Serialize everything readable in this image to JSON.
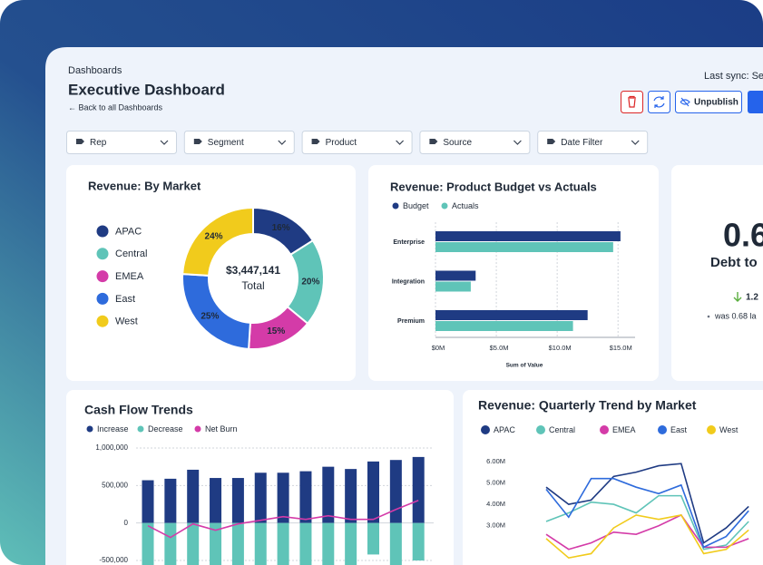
{
  "header": {
    "breadcrumb": "Dashboards",
    "title": "Executive Dashboard",
    "back_link": "← Back to all Dashboards",
    "last_sync": "Last sync: Se",
    "unpublish": "Unpublish"
  },
  "filters": [
    "Rep",
    "Segment",
    "Product",
    "Source",
    "Date Filter"
  ],
  "kpi": {
    "value": "0.6",
    "label": "Debt to",
    "change": "1.2",
    "comparison": "was 0.68 la"
  },
  "chart_data": [
    {
      "type": "pie",
      "title": "Revenue: By Market",
      "categories": [
        "APAC",
        "Central",
        "EMEA",
        "East",
        "West"
      ],
      "values": [
        16,
        20,
        15,
        25,
        24
      ],
      "value_labels": [
        "16%",
        "20%",
        "15%",
        "25%",
        "24%"
      ],
      "colors": [
        "#1f3b83",
        "#5fc4b8",
        "#d43ba8",
        "#2e6bdc",
        "#f1cb1c"
      ],
      "center_value": "$3,447,141",
      "center_label": "Total"
    },
    {
      "type": "bar",
      "orientation": "horizontal",
      "title": "Revenue: Product Budget vs Actuals",
      "categories": [
        "Enterprise",
        "Integration",
        "Premium"
      ],
      "series": [
        {
          "name": "Budget",
          "color": "#1f3b83",
          "values": [
            15.2,
            3.3,
            12.5
          ]
        },
        {
          "name": "Actuals",
          "color": "#5fc4b8",
          "values": [
            14.6,
            2.9,
            11.3
          ]
        }
      ],
      "xlim": [
        0,
        16.4
      ],
      "xticks": [
        {
          "value": 0,
          "label": "$0M"
        },
        {
          "value": 5,
          "label": "$5.0M"
        },
        {
          "value": 10,
          "label": "$10.0M"
        },
        {
          "value": 15,
          "label": "$15.0M"
        }
      ],
      "xlabel": "Sum of Value",
      "grid": true
    },
    {
      "type": "bar",
      "title": "Cash Flow Trends",
      "series": [
        {
          "name": "Increase",
          "color": "#1f3b83",
          "values": [
            570000,
            590000,
            710000,
            600000,
            600000,
            670000,
            670000,
            690000,
            750000,
            720000,
            820000,
            840000,
            880000
          ]
        },
        {
          "name": "Decrease",
          "color": "#5fc4b8",
          "values": [
            -600000,
            -600000,
            -600000,
            -600000,
            -600000,
            -600000,
            -600000,
            -600000,
            -600000,
            -600000,
            -420000,
            -600000,
            -500000
          ]
        },
        {
          "name": "Net Burn",
          "color": "#d43ba8",
          "type": "line",
          "values": [
            -36000,
            -193000,
            -12000,
            -96000,
            -12000,
            36000,
            84000,
            48000,
            96000,
            48000,
            48000,
            181000,
            301000
          ]
        }
      ],
      "ylim": [
        -600000,
        1100000
      ],
      "yticks": [
        {
          "value": 1000000,
          "label": "1,000,000"
        },
        {
          "value": 500000,
          "label": "500,000"
        },
        0,
        {
          "value": -500000,
          "label": "-500,000"
        }
      ],
      "grid": true
    },
    {
      "type": "line",
      "title": "Revenue: Quarterly Trend by Market",
      "series": [
        {
          "name": "APAC",
          "color": "#1f3b83",
          "values": [
            4.8,
            4.0,
            4.2,
            5.3,
            5.5,
            5.8,
            5.9,
            2.2,
            2.9,
            3.9
          ]
        },
        {
          "name": "Central",
          "color": "#5fc4b8",
          "values": [
            3.2,
            3.6,
            4.1,
            4.0,
            3.6,
            4.4,
            4.4,
            1.9,
            2.1,
            3.2
          ]
        },
        {
          "name": "EMEA",
          "color": "#d43ba8",
          "values": [
            2.6,
            1.9,
            2.2,
            2.7,
            2.6,
            3.0,
            3.5,
            2.0,
            2.0,
            2.4
          ]
        },
        {
          "name": "East",
          "color": "#2e6bdc",
          "values": [
            4.7,
            3.4,
            5.2,
            5.2,
            4.8,
            4.5,
            4.9,
            2.0,
            2.5,
            3.7
          ]
        },
        {
          "name": "West",
          "color": "#f1cb1c",
          "values": [
            2.4,
            1.5,
            1.7,
            2.9,
            3.5,
            3.3,
            3.5,
            1.7,
            1.9,
            2.8
          ]
        }
      ],
      "ylim": [
        1,
        6.5
      ],
      "yticks": [
        {
          "value": 6,
          "label": "6.00M"
        },
        {
          "value": 5,
          "label": "5.00M"
        },
        {
          "value": 4,
          "label": "4.00M"
        },
        {
          "value": 3,
          "label": "3.00M"
        }
      ]
    }
  ]
}
